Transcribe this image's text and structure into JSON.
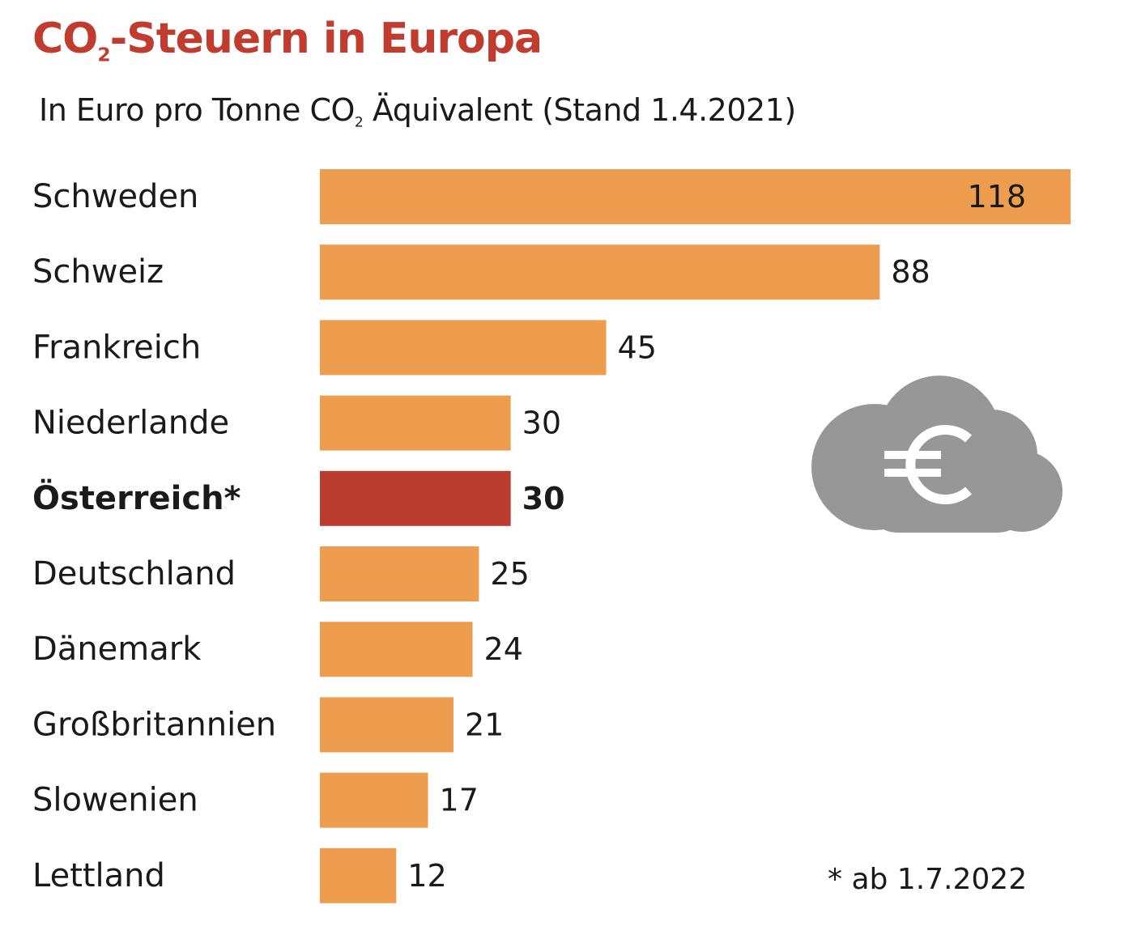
{
  "chart_data": {
    "type": "bar",
    "orientation": "horizontal",
    "title": {
      "before": "CO",
      "sub": "2",
      "after": "-Steuern in Europa"
    },
    "subtitle": {
      "before": "In Euro pro Tonne CO",
      "sub": "2",
      "after": " Äquivalent (Stand 1.4.2021)"
    },
    "categories": [
      "Schweden",
      "Schweiz",
      "Frankreich",
      "Niederlande",
      "Österreich*",
      "Deutschland",
      "Dänemark",
      "Großbritannien",
      "Slowenien",
      "Lettland"
    ],
    "values": [
      118,
      88,
      45,
      30,
      30,
      25,
      24,
      21,
      17,
      12
    ],
    "value_labels": [
      "118",
      "88",
      "45",
      "30",
      "30",
      "25",
      "24",
      "21",
      "17",
      "12"
    ],
    "highlight_index": 4,
    "xlim": [
      0,
      118
    ],
    "grid": false,
    "legend": "none",
    "footnote": "* ab 1.7.2022"
  },
  "colors": {
    "bar": "#ee9d4e",
    "highlight": "#bb3d2f",
    "title": "#bf3c2e",
    "cloud": "#979797"
  },
  "icon": "cloud-euro-icon"
}
